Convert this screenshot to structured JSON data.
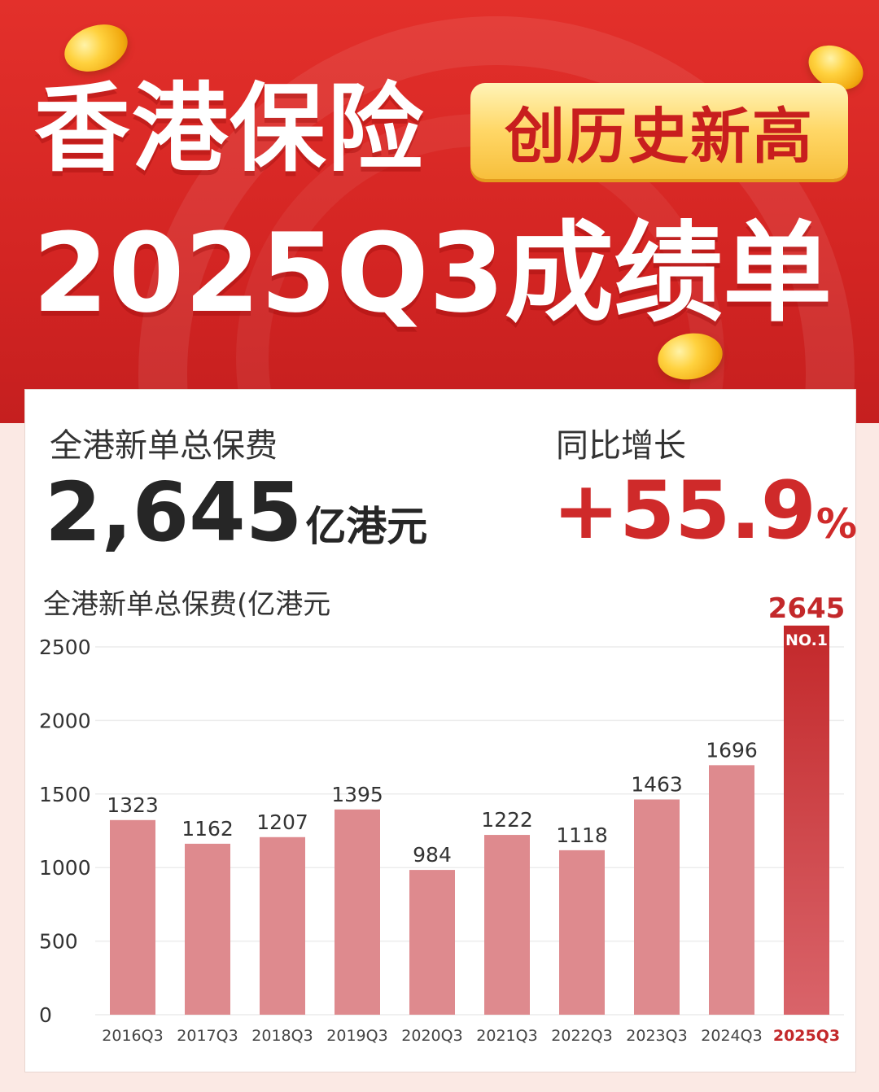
{
  "header": {
    "title_line1": "香港保险",
    "badge": "创历史新高",
    "title_line2": "2025Q3成绩单"
  },
  "summary": {
    "total_label": "全港新单总保费",
    "total_value": "2,645",
    "total_unit": "亿港元",
    "growth_label": "同比增长",
    "growth_value": "+55.9",
    "growth_unit": "%"
  },
  "colors": {
    "bar": "#de8a8e",
    "highlight": "#c3282a"
  },
  "chart_data": {
    "type": "bar",
    "title": "全港新单总保费(亿港元",
    "categories": [
      "2016Q3",
      "2017Q3",
      "2018Q3",
      "2019Q3",
      "2020Q3",
      "2021Q3",
      "2022Q3",
      "2023Q3",
      "2024Q3",
      "2025Q3"
    ],
    "values": [
      1323,
      1162,
      1207,
      1395,
      984,
      1222,
      1118,
      1463,
      1696,
      2645
    ],
    "ylim": [
      0,
      2500
    ],
    "yticks": [
      0,
      500,
      1000,
      1500,
      2000,
      2500
    ],
    "grid": true,
    "highlight_index": 9,
    "highlight_badge": "NO.1"
  }
}
